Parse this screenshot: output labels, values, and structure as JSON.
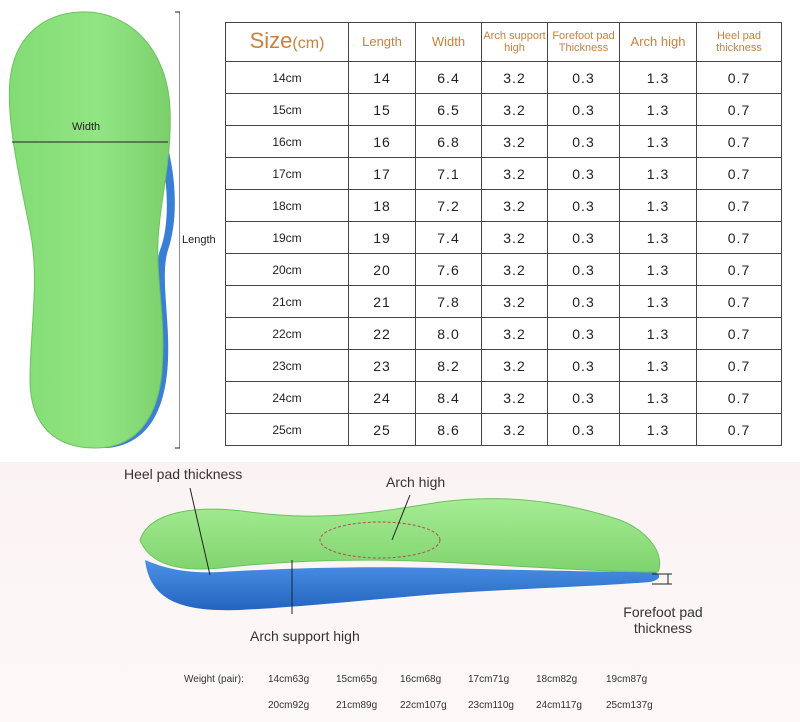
{
  "diagram": {
    "width_label": "Width",
    "length_label": "Length"
  },
  "table": {
    "header": {
      "size": "Size",
      "size_unit": "(cm)",
      "length": "Length",
      "width": "Width",
      "arch_support": "Arch support high",
      "forefoot_pad": "Forefoot pad Thickness",
      "arch_high": "Arch high",
      "heel_pad": "Heel pad thickness"
    },
    "rows": [
      {
        "size": "14cm",
        "length": "14",
        "width": "6.4",
        "arch_support": "3.2",
        "forefoot": "0.3",
        "arch_high": "1.3",
        "heel": "0.7"
      },
      {
        "size": "15cm",
        "length": "15",
        "width": "6.5",
        "arch_support": "3.2",
        "forefoot": "0.3",
        "arch_high": "1.3",
        "heel": "0.7"
      },
      {
        "size": "16cm",
        "length": "16",
        "width": "6.8",
        "arch_support": "3.2",
        "forefoot": "0.3",
        "arch_high": "1.3",
        "heel": "0.7"
      },
      {
        "size": "17cm",
        "length": "17",
        "width": "7.1",
        "arch_support": "3.2",
        "forefoot": "0.3",
        "arch_high": "1.3",
        "heel": "0.7"
      },
      {
        "size": "18cm",
        "length": "18",
        "width": "7.2",
        "arch_support": "3.2",
        "forefoot": "0.3",
        "arch_high": "1.3",
        "heel": "0.7"
      },
      {
        "size": "19cm",
        "length": "19",
        "width": "7.4",
        "arch_support": "3.2",
        "forefoot": "0.3",
        "arch_high": "1.3",
        "heel": "0.7"
      },
      {
        "size": "20cm",
        "length": "20",
        "width": "7.6",
        "arch_support": "3.2",
        "forefoot": "0.3",
        "arch_high": "1.3",
        "heel": "0.7"
      },
      {
        "size": "21cm",
        "length": "21",
        "width": "7.8",
        "arch_support": "3.2",
        "forefoot": "0.3",
        "arch_high": "1.3",
        "heel": "0.7"
      },
      {
        "size": "22cm",
        "length": "22",
        "width": "8.0",
        "arch_support": "3.2",
        "forefoot": "0.3",
        "arch_high": "1.3",
        "heel": "0.7"
      },
      {
        "size": "23cm",
        "length": "23",
        "width": "8.2",
        "arch_support": "3.2",
        "forefoot": "0.3",
        "arch_high": "1.3",
        "heel": "0.7"
      },
      {
        "size": "24cm",
        "length": "24",
        "width": "8.4",
        "arch_support": "3.2",
        "forefoot": "0.3",
        "arch_high": "1.3",
        "heel": "0.7"
      },
      {
        "size": "25cm",
        "length": "25",
        "width": "8.6",
        "arch_support": "3.2",
        "forefoot": "0.3",
        "arch_high": "1.3",
        "heel": "0.7"
      }
    ]
  },
  "side_view": {
    "heel_pad_label": "Heel pad thickness",
    "arch_high_label": "Arch high",
    "arch_support_label": "Arch support high",
    "forefoot_label": "Forefoot pad thickness"
  },
  "weights": {
    "title": "Weight (pair):",
    "items": [
      "14cm63g",
      "15cm65g",
      "16cm68g",
      "17cm71g",
      "18cm82g",
      "19cm87g",
      "20cm92g",
      "21cm89g",
      "22cm107g",
      "23cm110g",
      "24cm117g",
      "25cm137g"
    ]
  },
  "colors": {
    "insole_green": "#8fe37f",
    "sole_blue": "#2f78d4",
    "header_text": "#c8813e"
  }
}
